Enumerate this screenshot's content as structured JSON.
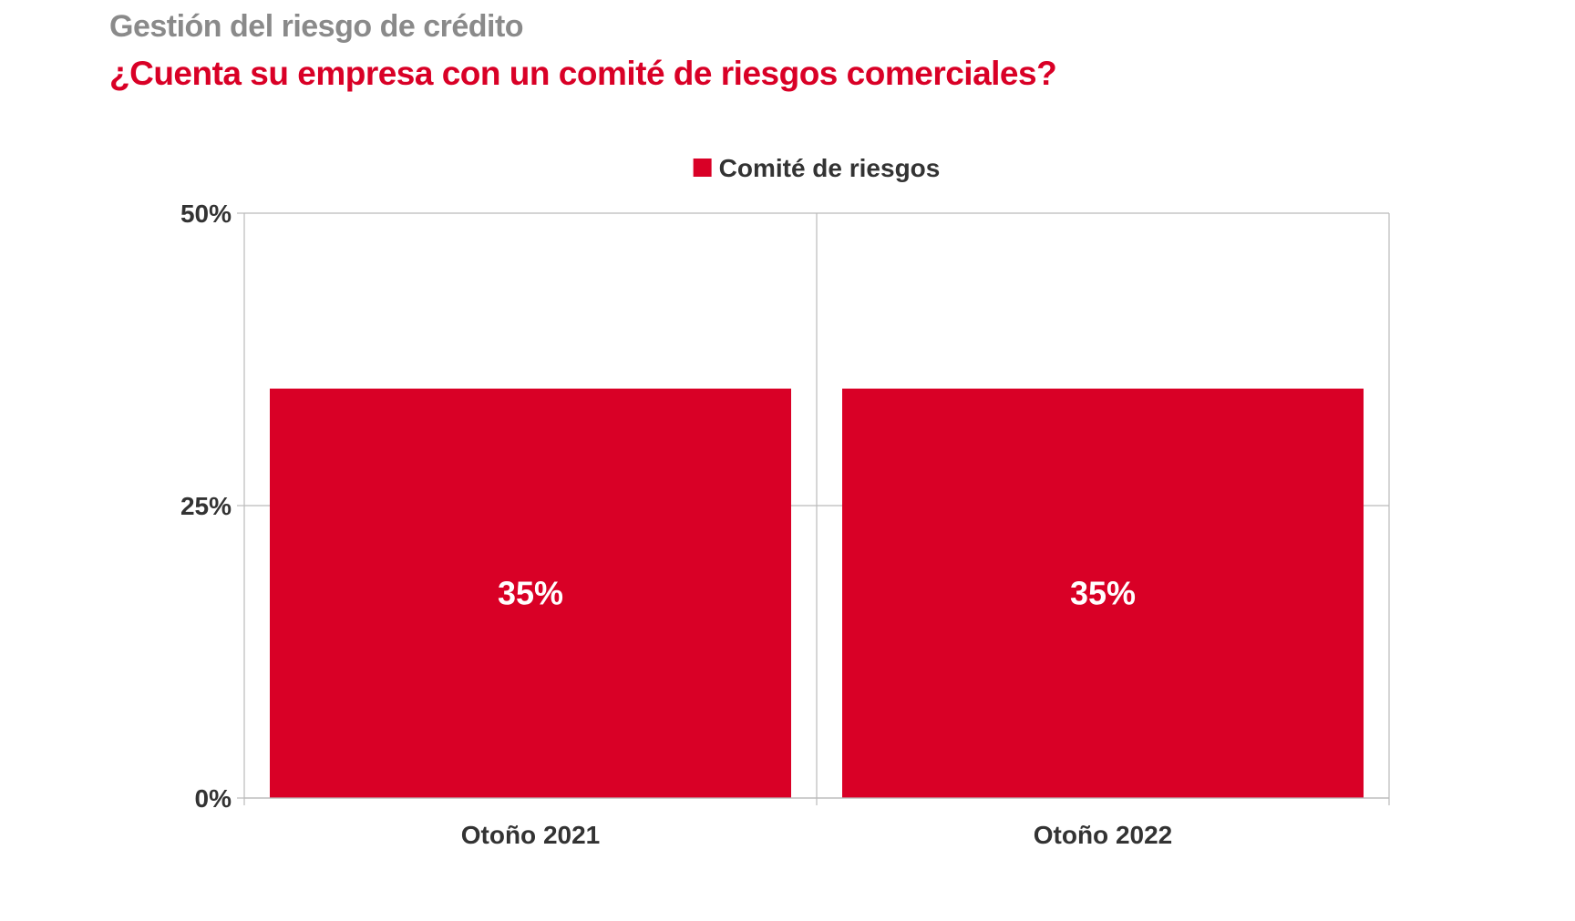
{
  "header": {
    "supertitle": "Gestión del riesgo de crédito",
    "title": "¿Cuenta su empresa con un comité de riesgos comerciales?"
  },
  "colors": {
    "bar": "#d90026",
    "supertitle": "#8a8a8a",
    "title": "#d90026",
    "grid": "#bbbbbb",
    "text": "#333333"
  },
  "chart_data": {
    "type": "bar",
    "categories": [
      "Otoño 2021",
      "Otoño 2022"
    ],
    "series": [
      {
        "name": "Comité de riesgos",
        "values": [
          35,
          35
        ],
        "labels": [
          "35%",
          "35%"
        ]
      }
    ],
    "ylim": [
      0,
      50
    ],
    "yticks": [
      0,
      25,
      50
    ],
    "ytick_labels": [
      "0%",
      "25%",
      "50%"
    ],
    "grid": true,
    "legend_position": "top-center"
  }
}
